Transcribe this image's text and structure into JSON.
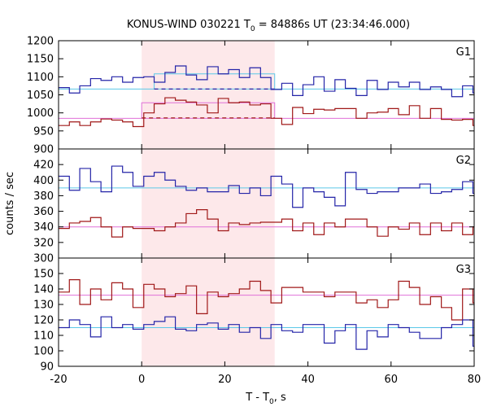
{
  "chart_data": {
    "type": "line",
    "title": {
      "prefix": "KONUS-WIND 030221 T",
      "sub": "0",
      "suffix": " = 84886s UT (23:34:46.000)"
    },
    "xlabel": {
      "prefix": "T - T",
      "sub": "0",
      "suffix": ", s"
    },
    "ylabel": "counts / sec",
    "xlim": [
      -20,
      80
    ],
    "xticks": [
      "-20",
      "0",
      "20",
      "40",
      "60",
      "80"
    ],
    "highlight": {
      "x0": 0,
      "x1": 32,
      "color": "#fde8ea"
    },
    "panels": [
      {
        "label": "G1",
        "ylim": [
          900,
          1200
        ],
        "yticks": [
          "1200",
          "1150",
          "1100",
          "1050",
          "1000",
          "950",
          "900"
        ],
        "series": [
          {
            "color": "#2424a8",
            "x": [
              -20,
              -17.4,
              -14.9,
              -12.3,
              -9.8,
              -7.2,
              -4.6,
              -2.1,
              0.5,
              3.0,
              5.6,
              8.1,
              10.7,
              13.2,
              15.8,
              18.4,
              20.9,
              23.5,
              26.0,
              28.6,
              31.1,
              33.7,
              36.3,
              38.8,
              41.4,
              43.9,
              46.5,
              49.0,
              51.6,
              54.2,
              56.7,
              59.3,
              61.8,
              64.4,
              66.9,
              69.5,
              72.1,
              74.6,
              77.2,
              79.7
            ],
            "y": [
              1070,
              1055,
              1075,
              1095,
              1090,
              1100,
              1085,
              1098,
              1100,
              1085,
              1112,
              1130,
              1105,
              1092,
              1128,
              1108,
              1120,
              1098,
              1125,
              1098,
              1065,
              1082,
              1048,
              1078,
              1100,
              1060,
              1092,
              1068,
              1048,
              1090,
              1065,
              1085,
              1072,
              1085,
              1065,
              1072,
              1065,
              1045,
              1075,
              1055
            ]
          },
          {
            "color": "#a01818",
            "x": [
              -20,
              -17.4,
              -14.9,
              -12.3,
              -9.8,
              -7.2,
              -4.6,
              -2.1,
              0.5,
              3.0,
              5.6,
              8.1,
              10.7,
              13.2,
              15.8,
              18.4,
              20.9,
              23.5,
              26.0,
              28.6,
              31.1,
              33.7,
              36.3,
              38.8,
              41.4,
              43.9,
              46.5,
              49.0,
              51.6,
              54.2,
              56.7,
              59.3,
              61.8,
              64.4,
              66.9,
              69.5,
              72.1,
              74.6,
              77.2,
              79.7
            ],
            "y": [
              965,
              975,
              965,
              975,
              983,
              980,
              975,
              962,
              1000,
              1025,
              1042,
              1035,
              1030,
              1022,
              1000,
              1040,
              1028,
              1030,
              1022,
              1025,
              985,
              968,
              1015,
              998,
              1010,
              1008,
              1012,
              1012,
              985,
              1000,
              1002,
              1012,
              995,
              1020,
              985,
              1012,
              982,
              980,
              982,
              965
            ]
          }
        ],
        "bg_levels": [
          {
            "color": "#5bc8e8",
            "y": 1066
          },
          {
            "color": "#e070d8",
            "y": 985
          }
        ],
        "burst_levels": [
          {
            "color": "#5bc8e8",
            "x0": 3,
            "x1": 32,
            "y": 1108,
            "dashed_y": 1066,
            "dash_color": "#2424a8"
          },
          {
            "color": "#e070d8",
            "x0": 0,
            "x1": 32,
            "y": 1028,
            "dashed_y": 986,
            "dash_color": "#a01818"
          }
        ]
      },
      {
        "label": "G2",
        "ylim": [
          300,
          440
        ],
        "yticks": [
          "420",
          "400",
          "380",
          "360",
          "340",
          "320",
          "300"
        ],
        "series": [
          {
            "color": "#2424a8",
            "x": [
              -20,
              -17.4,
              -14.9,
              -12.3,
              -9.8,
              -7.2,
              -4.6,
              -2.1,
              0.5,
              3.0,
              5.6,
              8.1,
              10.7,
              13.2,
              15.8,
              18.4,
              20.9,
              23.5,
              26.0,
              28.6,
              31.1,
              33.7,
              36.3,
              38.8,
              41.4,
              43.9,
              46.5,
              49.0,
              51.6,
              54.2,
              56.7,
              59.3,
              61.8,
              64.4,
              66.9,
              69.5,
              72.1,
              74.6,
              77.2,
              79.7
            ],
            "y": [
              405,
              387,
              415,
              398,
              385,
              418,
              410,
              392,
              405,
              410,
              400,
              392,
              387,
              390,
              385,
              385,
              393,
              383,
              390,
              380,
              405,
              395,
              365,
              390,
              385,
              378,
              367,
              410,
              388,
              383,
              385,
              385,
              390,
              390,
              395,
              383,
              385,
              388,
              398,
              383
            ]
          },
          {
            "color": "#a01818",
            "x": [
              -20,
              -17.4,
              -14.9,
              -12.3,
              -9.8,
              -7.2,
              -4.6,
              -2.1,
              0.5,
              3.0,
              5.6,
              8.1,
              10.7,
              13.2,
              15.8,
              18.4,
              20.9,
              23.5,
              26.0,
              28.6,
              31.1,
              33.7,
              36.3,
              38.8,
              41.4,
              43.9,
              46.5,
              49.0,
              51.6,
              54.2,
              56.7,
              59.3,
              61.8,
              64.4,
              66.9,
              69.5,
              72.1,
              74.6,
              77.2,
              79.7
            ],
            "y": [
              338,
              345,
              347,
              352,
              340,
              327,
              340,
              338,
              338,
              335,
              340,
              345,
              357,
              362,
              350,
              335,
              345,
              343,
              345,
              346,
              346,
              350,
              335,
              345,
              330,
              345,
              340,
              350,
              350,
              340,
              328,
              340,
              337,
              345,
              330,
              345,
              335,
              345,
              330,
              340
            ]
          }
        ],
        "bg_levels": [
          {
            "color": "#5bc8e8",
            "y": 390
          },
          {
            "color": "#e070d8",
            "y": 340
          }
        ],
        "burst_levels": []
      },
      {
        "label": "G3",
        "ylim": [
          90,
          160
        ],
        "yticks": [
          "150",
          "140",
          "130",
          "120",
          "110",
          "100",
          "90"
        ],
        "series": [
          {
            "color": "#a01818",
            "x": [
              -20,
              -17.4,
              -14.9,
              -12.3,
              -9.8,
              -7.2,
              -4.6,
              -2.1,
              0.5,
              3.0,
              5.6,
              8.1,
              10.7,
              13.2,
              15.8,
              18.4,
              20.9,
              23.5,
              26.0,
              28.6,
              31.1,
              33.7,
              36.3,
              38.8,
              41.4,
              43.9,
              46.5,
              49.0,
              51.6,
              54.2,
              56.7,
              59.3,
              61.8,
              64.4,
              66.9,
              69.5,
              72.1,
              74.6,
              77.2,
              79.7
            ],
            "y": [
              138,
              146,
              130,
              140,
              133,
              144,
              140,
              128,
              143,
              140,
              135,
              137,
              142,
              124,
              138,
              135,
              137,
              140,
              145,
              139,
              131,
              141,
              141,
              138,
              138,
              135,
              138,
              138,
              131,
              133,
              128,
              133,
              145,
              141,
              130,
              135,
              128,
              120,
              140,
              131
            ]
          },
          {
            "color": "#2424a8",
            "x": [
              -20,
              -17.4,
              -14.9,
              -12.3,
              -9.8,
              -7.2,
              -4.6,
              -2.1,
              0.5,
              3.0,
              5.6,
              8.1,
              10.7,
              13.2,
              15.8,
              18.4,
              20.9,
              23.5,
              26.0,
              28.6,
              31.1,
              33.7,
              36.3,
              38.8,
              41.4,
              43.9,
              46.5,
              49.0,
              51.6,
              54.2,
              56.7,
              59.3,
              61.8,
              64.4,
              66.9,
              69.5,
              72.1,
              74.6,
              77.2,
              79.7
            ],
            "y": [
              115,
              120,
              117,
              109,
              122,
              115,
              117,
              114,
              117,
              119,
              122,
              114,
              113,
              117,
              118,
              114,
              117,
              112,
              115,
              108,
              117,
              113,
              112,
              117,
              117,
              105,
              113,
              117,
              101,
              113,
              109,
              117,
              115,
              112,
              108,
              108,
              115,
              117,
              120,
              103
            ]
          }
        ],
        "bg_levels": [
          {
            "color": "#e070d8",
            "y": 136
          },
          {
            "color": "#5bc8e8",
            "y": 115
          }
        ],
        "burst_levels": []
      }
    ]
  }
}
